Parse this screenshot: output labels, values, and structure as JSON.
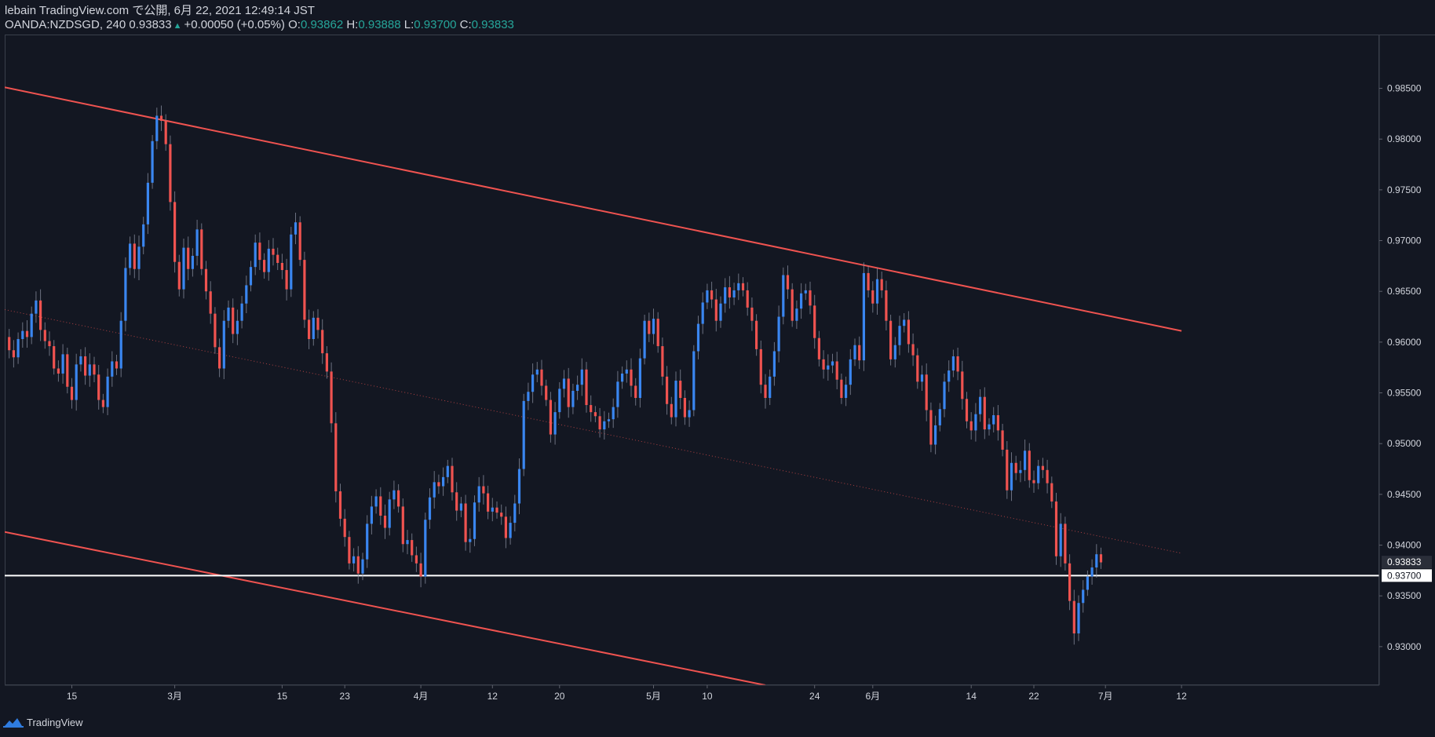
{
  "header": {
    "line1": "lebain TradingView.com で公開, 6月 22, 2021 12:49:14 JST",
    "symbol": "OANDA:NZDSGD, 240 0.93833",
    "change_icon": "up-triangle-icon",
    "change": "+0.00050 (+0.05%)",
    "o_label": "O:",
    "o_value": "0.93862",
    "h_label": "H:",
    "h_value": "0.93888",
    "l_label": "L:",
    "l_value": "0.93700",
    "c_label": "C:",
    "c_value": "0.93833"
  },
  "footer": {
    "brand": "TradingView",
    "brand_icon": "tradingview-logo-icon"
  },
  "colors": {
    "background": "#131722",
    "up": "#3a86f0",
    "down": "#ef5350",
    "trendline": "#ef5350",
    "support": "#ffffff",
    "text": "#d1d4dc"
  },
  "chart_data": {
    "type": "candlestick",
    "symbol": "OANDA:NZDSGD",
    "interval": "240",
    "ylim": [
      0.9262,
      0.9903
    ],
    "y_ticks": [
      "0.98500",
      "0.98000",
      "0.97500",
      "0.97000",
      "0.96500",
      "0.96000",
      "0.95500",
      "0.95000",
      "0.94500",
      "0.94000",
      "0.93500",
      "0.93000"
    ],
    "x_ticks": [
      {
        "label": "15",
        "index": 15
      },
      {
        "label": "3月",
        "index": 38
      },
      {
        "label": "15",
        "index": 62
      },
      {
        "label": "23",
        "index": 76
      },
      {
        "label": "4月",
        "index": 93
      },
      {
        "label": "12",
        "index": 109
      },
      {
        "label": "20",
        "index": 124
      },
      {
        "label": "5月",
        "index": 145
      },
      {
        "label": "10",
        "index": 157
      },
      {
        "label": "24",
        "index": 181
      },
      {
        "label": "6月",
        "index": 194
      },
      {
        "label": "14",
        "index": 216
      },
      {
        "label": "22",
        "index": 230
      },
      {
        "label": "7月",
        "index": 246
      },
      {
        "label": "12",
        "index": 263
      }
    ],
    "price_labels": [
      {
        "value": "0.93833",
        "price": 0.93833,
        "style": "current"
      },
      {
        "value": "0.93700",
        "price": 0.937,
        "style": "support"
      }
    ],
    "lines": [
      {
        "name": "upper-channel",
        "p1": [
          0,
          0.9851
        ],
        "p2": [
          263,
          0.9611
        ],
        "style": "solid"
      },
      {
        "name": "lower-channel",
        "p1": [
          0,
          0.9413
        ],
        "p2": [
          170,
          0.9262
        ],
        "style": "solid"
      },
      {
        "name": "mid-channel",
        "p1": [
          0,
          0.9632
        ],
        "p2": [
          263,
          0.9392
        ],
        "style": "dotted"
      },
      {
        "name": "support",
        "price": 0.937,
        "style": "horizontal"
      }
    ],
    "closes": [
      0.9605,
      0.9592,
      0.9585,
      0.9603,
      0.9611,
      0.9605,
      0.9628,
      0.9641,
      0.9612,
      0.9601,
      0.9596,
      0.9574,
      0.9569,
      0.9588,
      0.9556,
      0.9543,
      0.9578,
      0.9586,
      0.9567,
      0.9578,
      0.9568,
      0.9543,
      0.9536,
      0.9566,
      0.9581,
      0.9574,
      0.9621,
      0.9673,
      0.9697,
      0.9672,
      0.9694,
      0.9716,
      0.9757,
      0.9798,
      0.9823,
      0.9818,
      0.9795,
      0.9738,
      0.9679,
      0.9652,
      0.9693,
      0.9672,
      0.9685,
      0.9711,
      0.9672,
      0.965,
      0.9628,
      0.9595,
      0.9574,
      0.9621,
      0.9634,
      0.9608,
      0.9621,
      0.9638,
      0.9656,
      0.9674,
      0.9698,
      0.9681,
      0.9669,
      0.9692,
      0.9686,
      0.9678,
      0.9671,
      0.9652,
      0.9706,
      0.9718,
      0.9681,
      0.9622,
      0.9603,
      0.9624,
      0.9612,
      0.9589,
      0.9571,
      0.952,
      0.9453,
      0.9426,
      0.9408,
      0.9382,
      0.9389,
      0.9372,
      0.9386,
      0.9421,
      0.9438,
      0.9448,
      0.9429,
      0.9417,
      0.9445,
      0.9454,
      0.9438,
      0.9401,
      0.9405,
      0.939,
      0.9382,
      0.9369,
      0.9425,
      0.9447,
      0.9462,
      0.9458,
      0.9467,
      0.9478,
      0.9452,
      0.9434,
      0.9441,
      0.9403,
      0.9406,
      0.9442,
      0.9458,
      0.9451,
      0.9433,
      0.9437,
      0.9432,
      0.9428,
      0.9407,
      0.9422,
      0.9441,
      0.9475,
      0.9542,
      0.9551,
      0.9568,
      0.9573,
      0.9557,
      0.9543,
      0.9509,
      0.9531,
      0.9554,
      0.9564,
      0.9536,
      0.9552,
      0.9558,
      0.9573,
      0.9538,
      0.9531,
      0.9527,
      0.9514,
      0.9522,
      0.9524,
      0.9536,
      0.9561,
      0.9569,
      0.9573,
      0.9557,
      0.9545,
      0.9584,
      0.9621,
      0.9608,
      0.9623,
      0.9596,
      0.9566,
      0.9539,
      0.9526,
      0.9562,
      0.9545,
      0.9526,
      0.9533,
      0.9591,
      0.9618,
      0.9639,
      0.9651,
      0.9642,
      0.9621,
      0.9638,
      0.9654,
      0.9644,
      0.9651,
      0.9658,
      0.9651,
      0.9634,
      0.9621,
      0.9593,
      0.9558,
      0.9545,
      0.9566,
      0.9591,
      0.9625,
      0.9666,
      0.9652,
      0.9621,
      0.9633,
      0.9648,
      0.9651,
      0.9636,
      0.9604,
      0.9583,
      0.9573,
      0.9577,
      0.9581,
      0.9563,
      0.9545,
      0.9558,
      0.9583,
      0.9597,
      0.9582,
      0.9668,
      0.9651,
      0.9638,
      0.9662,
      0.9651,
      0.9621,
      0.9583,
      0.9597,
      0.9616,
      0.9622,
      0.9598,
      0.9587,
      0.9561,
      0.9568,
      0.9533,
      0.9499,
      0.9518,
      0.9534,
      0.9561,
      0.9572,
      0.9586,
      0.9571,
      0.9544,
      0.9522,
      0.9513,
      0.9529,
      0.9546,
      0.9514,
      0.9519,
      0.9528,
      0.9513,
      0.9494,
      0.9454,
      0.9481,
      0.9471,
      0.9474,
      0.9493,
      0.9464,
      0.9461,
      0.9478,
      0.9474,
      0.9461,
      0.9443,
      0.9389,
      0.9421,
      0.9382,
      0.9345,
      0.9313,
      0.9343,
      0.9356,
      0.9369,
      0.9378,
      0.9391,
      0.9383
    ]
  }
}
